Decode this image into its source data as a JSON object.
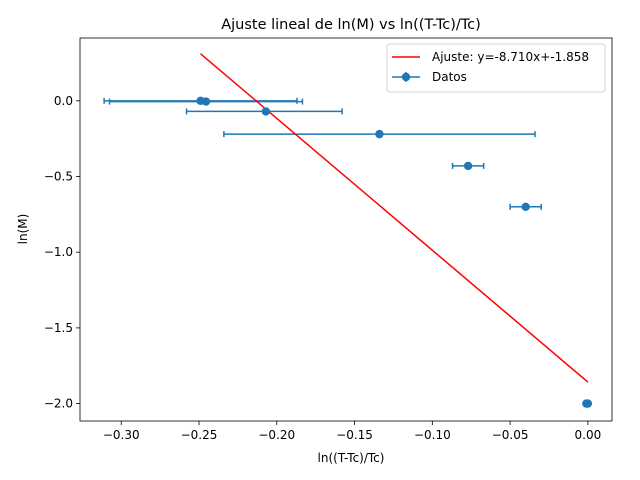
{
  "chart_data": {
    "type": "scatter",
    "title": "Ajuste lineal de ln(M) vs ln((T-Tc)/Tc)",
    "xlabel": "ln((T-Tc)/Tc)",
    "ylabel": "ln(M)",
    "xlim": [
      -0.3265,
      0.0155
    ],
    "ylim": [
      -2.115,
      0.415
    ],
    "xticks": [
      -0.3,
      -0.25,
      -0.2,
      -0.15,
      -0.1,
      -0.05,
      0.0
    ],
    "xtick_labels": [
      "−0.30",
      "−0.25",
      "−0.20",
      "−0.15",
      "−0.10",
      "−0.05",
      "0.00"
    ],
    "yticks": [
      0.0,
      -0.5,
      -1.0,
      -1.5,
      -2.0
    ],
    "ytick_labels": [
      "0.0",
      "−0.5",
      "−1.0",
      "−1.5",
      "−2.0"
    ],
    "grid": false,
    "legend_position": "upper right",
    "series": [
      {
        "name": "Datos",
        "kind": "errorbar",
        "color": "#1f77b4",
        "points": [
          {
            "x": -0.249,
            "y": 0.0,
            "xerr_low": 0.062,
            "xerr_high": 0.062
          },
          {
            "x": -0.2455,
            "y": -0.005,
            "xerr_low": 0.062,
            "xerr_high": 0.062
          },
          {
            "x": -0.207,
            "y": -0.07,
            "xerr_low": 0.051,
            "xerr_high": 0.049
          },
          {
            "x": -0.134,
            "y": -0.22,
            "xerr_low": 0.1,
            "xerr_high": 0.1
          },
          {
            "x": -0.077,
            "y": -0.43,
            "xerr_low": 0.01,
            "xerr_high": 0.01
          },
          {
            "x": -0.04,
            "y": -0.7,
            "xerr_low": 0.01,
            "xerr_high": 0.01
          },
          {
            "x": -0.001,
            "y": -2.0,
            "xerr_low": 0.0005,
            "xerr_high": 0.0005
          },
          {
            "x": -0.0005,
            "y": -2.0,
            "xerr_low": 0.0005,
            "xerr_high": 0.0005
          },
          {
            "x": 0.0,
            "y": -2.0,
            "xerr_low": 0.0005,
            "xerr_high": 0.0005
          }
        ]
      },
      {
        "name": "Ajuste: y=-8.710x+-1.858",
        "kind": "line",
        "color": "#ff0000",
        "slope": -8.71,
        "intercept": -1.858,
        "x_range": [
          -0.249,
          0.0
        ]
      }
    ]
  }
}
